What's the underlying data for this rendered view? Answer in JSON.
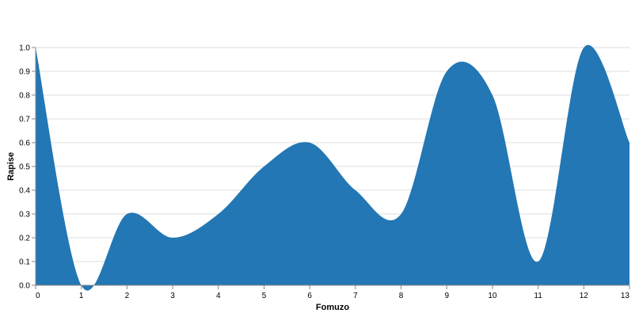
{
  "chart_data": {
    "type": "area",
    "title": "",
    "xlabel": "Fomuzo",
    "ylabel": "Rapise",
    "xlim": [
      0,
      13
    ],
    "ylim": [
      0,
      1.0
    ],
    "grid": true,
    "fill_color": "#2377b4",
    "x_ticks": [
      "0",
      "1",
      "2",
      "3",
      "4",
      "5",
      "6",
      "7",
      "8",
      "9",
      "10",
      "11",
      "12",
      "13"
    ],
    "y_ticks": [
      "0.0",
      "0.1",
      "0.2",
      "0.3",
      "0.4",
      "0.5",
      "0.6",
      "0.7",
      "0.8",
      "0.9",
      "1.0"
    ],
    "x": [
      0,
      1,
      2,
      3,
      4,
      5,
      6,
      7,
      8,
      9,
      10,
      11,
      12,
      13
    ],
    "values": [
      1.0,
      0.0,
      0.3,
      0.2,
      0.3,
      0.5,
      0.6,
      0.4,
      0.3,
      0.9,
      0.8,
      0.1,
      1.0,
      0.6
    ]
  }
}
